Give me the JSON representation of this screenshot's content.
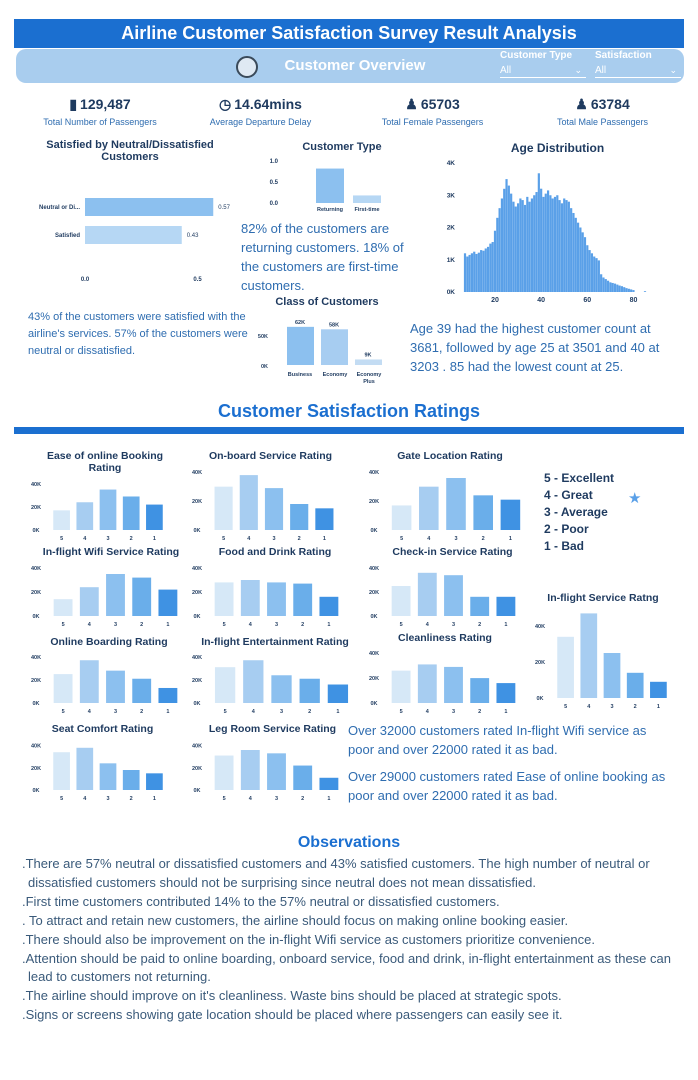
{
  "header": {
    "title": "Airline Customer Satisfaction Survey Result Analysis",
    "subtitle": "Customer Overview",
    "slicers": [
      {
        "label": "Customer Type",
        "value": "All"
      },
      {
        "label": "Satisfaction",
        "value": "All"
      }
    ]
  },
  "kpis": [
    {
      "icon": "luggage-icon",
      "value": "129,487",
      "label": "Total Number of Passengers"
    },
    {
      "icon": "clock-icon",
      "value": "14.64mins",
      "label": "Average Departure Delay"
    },
    {
      "icon": "female-icon",
      "value": "65703",
      "label": "Total Female Passengers"
    },
    {
      "icon": "male-icon",
      "value": "63784",
      "label": "Total Male Passengers"
    }
  ],
  "overview_text": {
    "satisfied_note": "43% of the customers were satisfied with the airline's services. 57% of the customers were neutral or dissatisfied.",
    "customer_type_note": "82% of the customers are returning customers. 18% of the customers are first-time customers.",
    "age_note": "Age 39 had the highest customer count at 3681, followed by age 25 at 3501 and 40 at 3203 . 85 had the lowest count at 25."
  },
  "section2_title": "Customer Satisfaction Ratings",
  "rating_legend": [
    "5 - Excellent",
    "4 - Great",
    "3 - Average",
    "2 - Poor",
    "1 - Bad"
  ],
  "rating_notes": [
    "Over 32000 customers rated In-flight Wifi service as poor and over 22000 rated it as bad.",
    "Over 29000 customers rated Ease of online booking as poor and over 22000 rated it as bad."
  ],
  "observations": {
    "title": "Observations",
    "items": [
      ".There are 57% neutral or dissatisfied customers and 43% satisfied customers. The high number of neutral or dissatisfied customers should not be surprising since neutral does not mean dissatisfied.",
      ".First time customers contributed 14% to the 57% neutral or dissatisfied customers.",
      ". To attract and retain new customers, the airline should focus on making online booking easier.",
      ".There should also be improvement on the in-flight Wifi service as customers prioritize convenience.",
      ".Attention should be paid to online boarding, onboard service, food and drink, in-flight entertainment as these can lead to customers not returning.",
      ".The airline should improve on it's cleanliness. Waste bins should be placed at strategic spots.",
      ".Signs or screens showing gate location should be placed where passengers can easily see it."
    ]
  },
  "colors": {
    "header_blue": "#1b6fd0",
    "light_blue": "#a9cdee",
    "rating_5": "#d6e8f7",
    "rating_4": "#a7cdf1",
    "rating_3": "#8cc0ef",
    "rating_2": "#6aaeea",
    "rating_1": "#3f92e3"
  },
  "chart_data": [
    {
      "id": "satisfaction",
      "type": "bar",
      "orientation": "horizontal",
      "title": "Satisfied by Neutral/Dissatisfied Customers",
      "categories": [
        "Neutral or Di...",
        "Satisfied"
      ],
      "values": [
        0.57,
        0.43
      ],
      "value_labels": [
        "0.57",
        "0.43"
      ],
      "xlim": [
        0,
        0.6
      ],
      "x_ticks": [
        "0.0",
        "0.5"
      ]
    },
    {
      "id": "customer_type",
      "type": "bar",
      "title": "Customer Type",
      "categories": [
        "Returning",
        "First-time"
      ],
      "values": [
        0.82,
        0.18
      ],
      "ylim": [
        0,
        1.0
      ],
      "y_ticks": [
        "1.0",
        "0.5",
        "0.0"
      ]
    },
    {
      "id": "class",
      "type": "bar",
      "title": "Class of Customers",
      "categories": [
        "Business",
        "Economy",
        "Economy Plus"
      ],
      "values": [
        62000,
        58000,
        9000
      ],
      "value_labels": [
        "62K",
        "58K",
        "9K"
      ],
      "ylim": [
        0,
        65000
      ],
      "y_ticks": [
        "50K",
        "0K"
      ]
    },
    {
      "id": "age",
      "type": "bar",
      "title": "Age Distribution",
      "x_range": [
        7,
        85
      ],
      "x_ticks": [
        "20",
        "40",
        "60",
        "80"
      ],
      "y_ticks": [
        "4K",
        "3K",
        "2K",
        "1K",
        "0K"
      ],
      "ylim": [
        0,
        4000
      ],
      "x": [
        7,
        8,
        9,
        10,
        11,
        12,
        13,
        14,
        15,
        16,
        17,
        18,
        19,
        20,
        21,
        22,
        23,
        24,
        25,
        26,
        27,
        28,
        29,
        30,
        31,
        32,
        33,
        34,
        35,
        36,
        37,
        38,
        39,
        40,
        41,
        42,
        43,
        44,
        45,
        46,
        47,
        48,
        49,
        50,
        51,
        52,
        53,
        54,
        55,
        56,
        57,
        58,
        59,
        60,
        61,
        62,
        63,
        64,
        65,
        66,
        67,
        68,
        69,
        70,
        71,
        72,
        73,
        74,
        75,
        76,
        77,
        78,
        79,
        80,
        85
      ],
      "values": [
        1200,
        1100,
        1150,
        1200,
        1250,
        1180,
        1220,
        1300,
        1280,
        1350,
        1400,
        1500,
        1550,
        1900,
        2300,
        2600,
        2900,
        3200,
        3501,
        3300,
        3050,
        2800,
        2650,
        2750,
        2900,
        2850,
        2700,
        2950,
        2800,
        2900,
        3000,
        3100,
        3681,
        3203,
        2950,
        3050,
        3150,
        3000,
        2900,
        2950,
        3000,
        2850,
        2750,
        2900,
        2850,
        2800,
        2600,
        2450,
        2300,
        2150,
        2000,
        1850,
        1700,
        1450,
        1300,
        1200,
        1100,
        1050,
        980,
        550,
        450,
        400,
        350,
        300,
        280,
        260,
        230,
        200,
        180,
        150,
        120,
        100,
        80,
        60,
        25
      ]
    },
    {
      "id": "ratings",
      "type": "bar",
      "categories": [
        "5",
        "4",
        "3",
        "2",
        "1"
      ],
      "charts": [
        {
          "title": "Ease of online Booking Rating",
          "values": [
            17000,
            24000,
            35000,
            29000,
            22000
          ],
          "ylim": [
            0,
            45000
          ],
          "y_ticks": [
            "40K",
            "20K",
            "0K"
          ]
        },
        {
          "title": "On-board Service Rating",
          "values": [
            30000,
            38000,
            29000,
            18000,
            15000
          ],
          "ylim": [
            0,
            45000
          ],
          "y_ticks": [
            "40K",
            "20K",
            "0K"
          ]
        },
        {
          "title": "Gate Location Rating",
          "values": [
            17000,
            30000,
            36000,
            24000,
            21000
          ],
          "ylim": [
            0,
            45000
          ],
          "y_ticks": [
            "40K",
            "20K",
            "0K"
          ]
        },
        {
          "title": "In-flight Wifi Service Rating",
          "values": [
            14000,
            24000,
            35000,
            32000,
            22000
          ],
          "ylim": [
            0,
            45000
          ],
          "y_ticks": [
            "40K",
            "20K",
            "0K"
          ]
        },
        {
          "title": "Food and Drink Rating",
          "values": [
            28000,
            30000,
            28000,
            27000,
            16000
          ],
          "ylim": [
            0,
            45000
          ],
          "y_ticks": [
            "40K",
            "20K",
            "0K"
          ]
        },
        {
          "title": "Check-in Service Rating",
          "values": [
            25000,
            36000,
            34000,
            16000,
            16000
          ],
          "ylim": [
            0,
            45000
          ],
          "y_ticks": [
            "40K",
            "20K",
            "0K"
          ]
        },
        {
          "title": "Online Boarding Rating",
          "values": [
            25000,
            37000,
            28000,
            21000,
            13000
          ],
          "ylim": [
            0,
            45000
          ],
          "y_ticks": [
            "40K",
            "20K",
            "0K"
          ]
        },
        {
          "title": "In-flight Entertainment Rating",
          "values": [
            31000,
            37000,
            24000,
            21000,
            16000
          ],
          "ylim": [
            0,
            45000
          ],
          "y_ticks": [
            "40K",
            "20K",
            "0K"
          ]
        },
        {
          "title": "Cleanliness Rating",
          "values": [
            26000,
            31000,
            29000,
            20000,
            16000
          ],
          "ylim": [
            0,
            45000
          ],
          "y_ticks": [
            "40K",
            "20K",
            "0K"
          ]
        },
        {
          "title": "In-flight Service Ratng",
          "values": [
            34000,
            47000,
            25000,
            14000,
            9000
          ],
          "ylim": [
            0,
            50000
          ],
          "y_ticks": [
            "40K",
            "20K",
            "0K"
          ]
        },
        {
          "title": "Seat Comfort Rating",
          "values": [
            34000,
            38000,
            24000,
            18000,
            15000
          ],
          "ylim": [
            0,
            45000
          ],
          "y_ticks": [
            "40K",
            "20K",
            "0K"
          ]
        },
        {
          "title": "Leg Room Service Rating",
          "values": [
            31000,
            36000,
            33000,
            22000,
            11000
          ],
          "ylim": [
            0,
            45000
          ],
          "y_ticks": [
            "40K",
            "20K",
            "0K"
          ]
        }
      ]
    }
  ]
}
